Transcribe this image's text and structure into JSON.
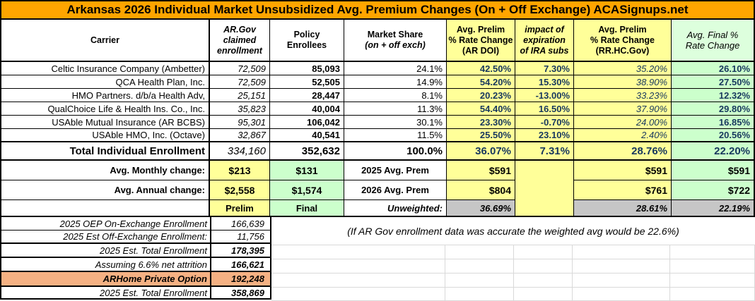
{
  "title": "Arkansas 2026 Individual Market Unsubsidized Avg. Premium Changes (On + Off Exchange) ACASignups.net",
  "header": {
    "carrier": "Carrier",
    "argov_l1": "AR.Gov",
    "argov_l2": "claimed",
    "argov_l3": "enrollment",
    "policy_l1": "Policy",
    "policy_l2": "Enrollees",
    "share_l1": "Market Share",
    "share_l2": "(on + off exch)",
    "doi_l1": "Avg. Prelim",
    "doi_l2": "% Rate Change",
    "doi_l3": "(AR DOI)",
    "ira_l1": "impact of",
    "ira_l2": "expiration",
    "ira_l3": "of IRA subs",
    "rrhc_l1": "Avg. Prelim",
    "rrhc_l2": "% Rate Change",
    "rrhc_l3": "(RR.HC.Gov)",
    "final_l1": "Avg. Final %",
    "final_l2": "Rate Change"
  },
  "carriers": [
    {
      "name": "Celtic Insurance Company (Ambetter)",
      "claimed": "72,509",
      "enrollees": "85,093",
      "share": "24.1%",
      "doi": "42.50%",
      "ira": "7.30%",
      "rrhc": "35.20%",
      "final": "26.10%"
    },
    {
      "name": "QCA Health Plan, Inc.",
      "claimed": "72,509",
      "enrollees": "52,505",
      "share": "14.9%",
      "doi": "54.20%",
      "ira": "15.30%",
      "rrhc": "38.90%",
      "final": "27.50%"
    },
    {
      "name": "HMO Partners. d/b/a Health Adv,",
      "claimed": "25,151",
      "enrollees": "28,447",
      "share": "8.1%",
      "doi": "20.23%",
      "ira": "-13.00%",
      "rrhc": "33.23%",
      "final": "12.32%"
    },
    {
      "name": "QualChoice Life & Health Ins. Co., Inc.",
      "claimed": "35,823",
      "enrollees": "40,004",
      "share": "11.3%",
      "doi": "54.40%",
      "ira": "16.50%",
      "rrhc": "37.90%",
      "final": "29.80%"
    },
    {
      "name": "USAble Mutual Insurance (AR BCBS)",
      "claimed": "95,301",
      "enrollees": "106,042",
      "share": "30.1%",
      "doi": "23.30%",
      "ira": "-0.70%",
      "rrhc": "24.00%",
      "final": "16.85%"
    },
    {
      "name": "USAble HMO, Inc. (Octave)",
      "claimed": "32,867",
      "enrollees": "40,541",
      "share": "11.5%",
      "doi": "25.50%",
      "ira": "23.10%",
      "rrhc": "2.40%",
      "final": "20.56%"
    }
  ],
  "total": {
    "label": "Total Individual Enrollment",
    "claimed": "334,160",
    "enrollees": "352,632",
    "share": "100.0%",
    "doi": "36.07%",
    "ira": "7.31%",
    "rrhc": "28.76%",
    "final": "22.20%"
  },
  "monthly": {
    "label": "Avg. Monthly change:",
    "prelim": "$213",
    "final": "$131",
    "prem": "2025 Avg. Prem",
    "doi": "$591",
    "rrhc": "$591",
    "final_col": "$591"
  },
  "annual": {
    "label": "Avg. Annual change:",
    "prelim": "$2,558",
    "final": "$1,574",
    "prem": "2026 Avg. Prem",
    "doi": "$804",
    "rrhc": "$761",
    "final_col": "$722"
  },
  "pf": {
    "prelim": "Prelim",
    "final": "Final",
    "label": "Unweighted:",
    "doi": "36.69%",
    "rrhc": "28.61%",
    "final_col": "22.19%"
  },
  "note": "(If AR Gov enrollment data was accurate the weighted avg would be 22.6%)",
  "bottom_rows": [
    {
      "label": "2025 OEP On-Exchange Enrollment",
      "value": "166,639"
    },
    {
      "label": "2025 Est Off-Exchange Enrollment:",
      "value": "11,756"
    },
    {
      "label": "2025 Est. Total Enrollment",
      "value": "178,395"
    },
    {
      "label": "Assuming 6.6% net attrition",
      "value": "166,621"
    },
    {
      "label": "ARHome Private Option",
      "value": "192,248"
    },
    {
      "label": "2025 Est. Total Enrollment",
      "value": "358,869"
    }
  ],
  "colors": {
    "title_bg": "#FFA500",
    "cell_yellow": "#FFFF99",
    "cell_green": "#CCFFCC",
    "header_green": "#DDFFDD",
    "cell_gray": "#C6C6C6",
    "highlight_orange": "#F5B183",
    "pct_text_navy": "#17375E"
  }
}
